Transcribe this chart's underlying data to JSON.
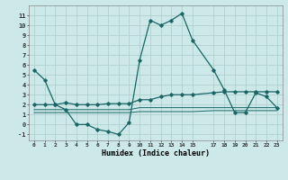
{
  "xlabel": "Humidex (Indice chaleur)",
  "background_color": "#cce8e8",
  "grid_color": "#b0d0d0",
  "line_color": "#1a6666",
  "xlim": [
    -0.5,
    23.5
  ],
  "ylim": [
    -1.6,
    12.0
  ],
  "x_ticks": [
    0,
    1,
    2,
    3,
    4,
    5,
    6,
    7,
    8,
    9,
    10,
    11,
    12,
    13,
    14,
    15,
    17,
    18,
    19,
    20,
    21,
    22,
    23
  ],
  "y_ticks": [
    -1,
    0,
    1,
    2,
    3,
    4,
    5,
    6,
    7,
    8,
    9,
    10,
    11
  ],
  "line1_x": [
    0,
    1,
    2,
    3,
    4,
    5,
    6,
    7,
    8,
    9,
    10,
    11,
    12,
    13,
    14,
    15,
    17,
    18,
    19,
    20,
    21,
    22,
    23
  ],
  "line1_y": [
    5.5,
    4.5,
    2.0,
    1.5,
    0.0,
    0.0,
    -0.5,
    -0.7,
    -1.0,
    0.2,
    6.5,
    10.5,
    10.0,
    10.5,
    11.2,
    8.5,
    5.5,
    3.5,
    1.2,
    1.2,
    3.2,
    2.8,
    1.7
  ],
  "line2_x": [
    0,
    1,
    2,
    3,
    4,
    5,
    6,
    7,
    8,
    9,
    10,
    11,
    12,
    13,
    14,
    15,
    17,
    18,
    19,
    20,
    21,
    22,
    23
  ],
  "line2_y": [
    2.0,
    2.0,
    2.0,
    2.2,
    2.0,
    2.0,
    2.0,
    2.1,
    2.1,
    2.1,
    2.5,
    2.5,
    2.8,
    3.0,
    3.0,
    3.0,
    3.2,
    3.3,
    3.3,
    3.3,
    3.3,
    3.3,
    3.3
  ],
  "line3_x": [
    0,
    1,
    2,
    3,
    4,
    5,
    6,
    7,
    8,
    9,
    10,
    11,
    12,
    13,
    14,
    15,
    17,
    18,
    19,
    20,
    21,
    22,
    23
  ],
  "line3_y": [
    1.5,
    1.5,
    1.5,
    1.5,
    1.5,
    1.5,
    1.5,
    1.5,
    1.5,
    1.5,
    1.7,
    1.7,
    1.7,
    1.7,
    1.7,
    1.7,
    1.7,
    1.7,
    1.7,
    1.7,
    1.7,
    1.7,
    1.7
  ],
  "line4_x": [
    0,
    1,
    2,
    3,
    4,
    5,
    6,
    7,
    8,
    9,
    10,
    11,
    12,
    13,
    14,
    15,
    17,
    18,
    19,
    20,
    21,
    22,
    23
  ],
  "line4_y": [
    1.2,
    1.2,
    1.2,
    1.2,
    1.2,
    1.2,
    1.2,
    1.2,
    1.2,
    1.2,
    1.3,
    1.3,
    1.3,
    1.3,
    1.3,
    1.3,
    1.4,
    1.4,
    1.4,
    1.4,
    1.4,
    1.4,
    1.4
  ]
}
